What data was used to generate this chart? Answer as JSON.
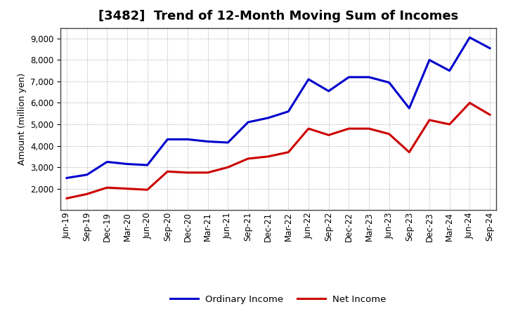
{
  "title": "[3482]  Trend of 12-Month Moving Sum of Incomes",
  "ylabel": "Amount (million yen)",
  "x_labels": [
    "Jun-19",
    "Sep-19",
    "Dec-19",
    "Mar-20",
    "Jun-20",
    "Sep-20",
    "Dec-20",
    "Mar-21",
    "Jun-21",
    "Sep-21",
    "Dec-21",
    "Mar-22",
    "Jun-22",
    "Sep-22",
    "Dec-22",
    "Mar-23",
    "Jun-23",
    "Sep-23",
    "Dec-23",
    "Mar-24",
    "Jun-24",
    "Sep-24"
  ],
  "ordinary_income": [
    2500,
    2650,
    3250,
    3150,
    3100,
    4300,
    4300,
    4200,
    4150,
    5100,
    5300,
    5600,
    7100,
    6550,
    7200,
    7200,
    6950,
    5750,
    8000,
    7500,
    9050,
    8550
  ],
  "net_income": [
    1550,
    1750,
    2050,
    2000,
    1950,
    2800,
    2750,
    2750,
    3000,
    3400,
    3500,
    3700,
    4800,
    4500,
    4800,
    4800,
    4550,
    3700,
    5200,
    5000,
    6000,
    5450
  ],
  "ordinary_income_color": "#0000CC",
  "net_income_color": "#CC0000",
  "background_color": "#FFFFFF",
  "plot_bg_color": "#FFFFFF",
  "grid_color": "#999999",
  "ylim": [
    1000,
    9500
  ],
  "yticks": [
    2000,
    3000,
    4000,
    5000,
    6000,
    7000,
    8000,
    9000
  ],
  "legend_ordinary": "Ordinary Income",
  "legend_net": "Net Income",
  "line_width": 2.2,
  "title_fontsize": 13,
  "label_fontsize": 9,
  "tick_fontsize": 8.5,
  "legend_fontsize": 9.5
}
